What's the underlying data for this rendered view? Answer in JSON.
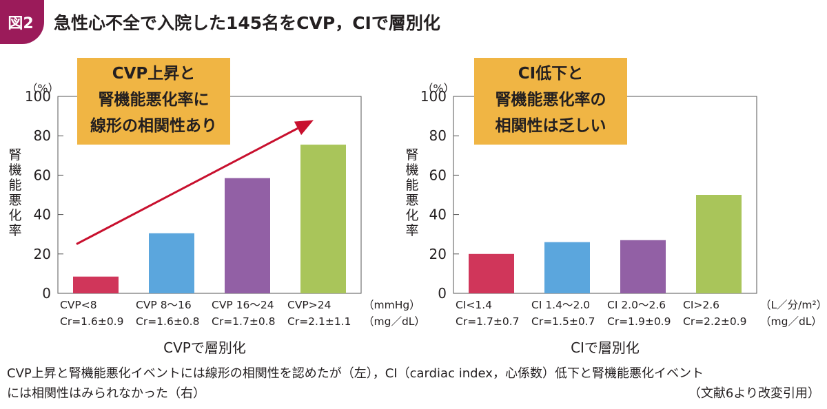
{
  "figure": {
    "badge": "図2",
    "title": "急性心不全で入院した145名をCVP，CIで層別化"
  },
  "caption": {
    "line1": "CVP上昇と腎機能悪化イベントには線形の相関性を認めたが（左），CI（cardiac index，心係数）低下と腎機能悪化イベント",
    "line2": "には相関性はみられなかった（右）",
    "source": "（文献6より改変引用）"
  },
  "colors": {
    "red": "#d0365a",
    "blue": "#5ba6dd",
    "purple": "#9260a5",
    "green": "#a9c55a",
    "arrow": "#c8102e",
    "callout": "#f0b544"
  },
  "chart_data": [
    {
      "type": "bar",
      "title": "",
      "xlabel": "CVPで層別化",
      "ylabel": "腎機能悪化率",
      "yunit": "（%）",
      "ylim": [
        0,
        100
      ],
      "yticks": [
        0,
        20,
        40,
        60,
        80,
        100
      ],
      "grid": false,
      "categories": [
        "CVP<8",
        "CVP 8～16",
        "CVP 16～24",
        "CVP>24"
      ],
      "sublabels": [
        "Cr=1.6±0.9",
        "Cr=1.6±0.8",
        "Cr=1.7±0.8",
        "Cr=2.1±1.1"
      ],
      "values": [
        8.5,
        30.5,
        58.5,
        75.5
      ],
      "bar_colors": [
        "#d0365a",
        "#5ba6dd",
        "#9260a5",
        "#a9c55a"
      ],
      "unit_labels": [
        "（mmHg）",
        "（mg／dL）"
      ],
      "callout": [
        "CVP上昇と",
        "腎機能悪化率に",
        "線形の相関性あり"
      ],
      "trend_arrow": true
    },
    {
      "type": "bar",
      "title": "",
      "xlabel": "CIで層別化",
      "ylabel": "腎機能悪化率",
      "yunit": "（%）",
      "ylim": [
        0,
        100
      ],
      "yticks": [
        0,
        20,
        40,
        60,
        80,
        100
      ],
      "grid": false,
      "categories": [
        "CI<1.4",
        "CI 1.4～2.0",
        "CI 2.0～2.6",
        "CI>2.6"
      ],
      "sublabels": [
        "Cr=1.7±0.7",
        "Cr=1.5±0.7",
        "Cr=1.9±0.9",
        "Cr=2.2±0.9"
      ],
      "values": [
        20,
        26,
        27,
        50
      ],
      "bar_colors": [
        "#d0365a",
        "#5ba6dd",
        "#9260a5",
        "#a9c55a"
      ],
      "unit_labels": [
        "（L／分/m²）",
        "（mg／dL）"
      ],
      "callout": [
        "CI低下と",
        "腎機能悪化率の",
        "相関性は乏しい"
      ],
      "trend_arrow": false
    }
  ]
}
